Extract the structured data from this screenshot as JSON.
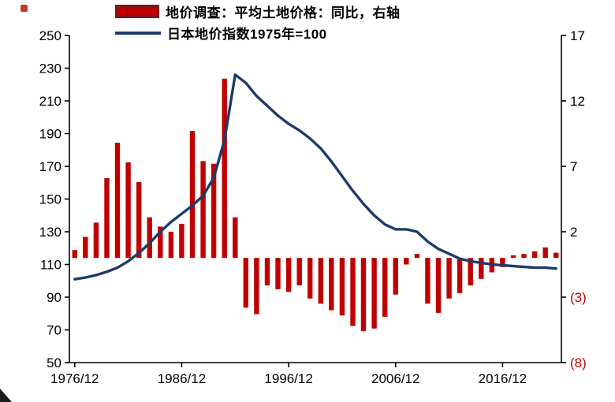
{
  "legend": {
    "items": [
      {
        "label": "地价调查：平均土地价格：同比，右轴",
        "swatch": "bar",
        "fill": "#c00000",
        "border": "#7f1416"
      },
      {
        "label": "日本地价指数1975年=100",
        "swatch": "line",
        "color": "#1f3a68"
      }
    ]
  },
  "chart_data": {
    "type": "bar+line combo",
    "grid": "off",
    "legend_position": "top",
    "years": [
      1976,
      1977,
      1978,
      1979,
      1980,
      1981,
      1982,
      1983,
      1984,
      1985,
      1986,
      1987,
      1988,
      1989,
      1990,
      1991,
      1992,
      1993,
      1994,
      1995,
      1996,
      1997,
      1998,
      1999,
      2000,
      2001,
      2002,
      2003,
      2004,
      2005,
      2006,
      2007,
      2008,
      2009,
      2010,
      2011,
      2012,
      2013,
      2014,
      2015,
      2016,
      2017,
      2018,
      2019,
      2020,
      2021
    ],
    "series": [
      {
        "name": "地价调查：平均土地价格：同比，右轴",
        "type": "bar",
        "axis": "right",
        "color": "#c00000",
        "border_color": "#7f1416",
        "values": [
          0.6,
          1.6,
          2.7,
          6.1,
          8.8,
          7.3,
          5.8,
          3.1,
          2.4,
          2.0,
          2.6,
          9.7,
          7.4,
          7.2,
          13.7,
          3.1,
          -3.8,
          -4.3,
          -2.1,
          -2.4,
          -2.6,
          -2.1,
          -3.1,
          -3.5,
          -4.0,
          -4.4,
          -5.2,
          -5.6,
          -5.4,
          -4.5,
          -2.8,
          -0.5,
          0.3,
          -3.5,
          -4.2,
          -3.1,
          -2.7,
          -2.1,
          -1.6,
          -1.1,
          -0.7,
          0.2,
          0.3,
          0.5,
          0.8,
          0.4
        ]
      },
      {
        "name": "日本地价指数1975年=100",
        "type": "line",
        "axis": "left",
        "color": "#1f3a68",
        "values": [
          101,
          102,
          103.5,
          105.5,
          108,
          112,
          117,
          123,
          130,
          136,
          141,
          146,
          152,
          163,
          186,
          226,
          221,
          213,
          207,
          201,
          196,
          192,
          187,
          181,
          173,
          164,
          155,
          147,
          140,
          134.5,
          131.5,
          131.5,
          130,
          124,
          119.5,
          116.5,
          113.5,
          112,
          111,
          110,
          109.5,
          109,
          108.5,
          108,
          108,
          107.5
        ]
      }
    ],
    "left_axis": {
      "min": 50,
      "max": 250,
      "ticks": [
        50,
        70,
        90,
        110,
        130,
        150,
        170,
        190,
        210,
        230,
        250
      ]
    },
    "right_axis": {
      "min": -8,
      "max": 17,
      "ticks": [
        17,
        12,
        7,
        2,
        -3,
        -8
      ],
      "tick_labels": [
        "17",
        "12",
        "7",
        "2",
        "(3)",
        "(8)"
      ],
      "negative_color": "#c00000"
    },
    "x_axis": {
      "tick_years": [
        1976,
        1986,
        1996,
        2006,
        2016
      ],
      "tick_labels": [
        "1976/12",
        "1986/12",
        "1996/12",
        "2006/12",
        "2016/12"
      ]
    }
  }
}
